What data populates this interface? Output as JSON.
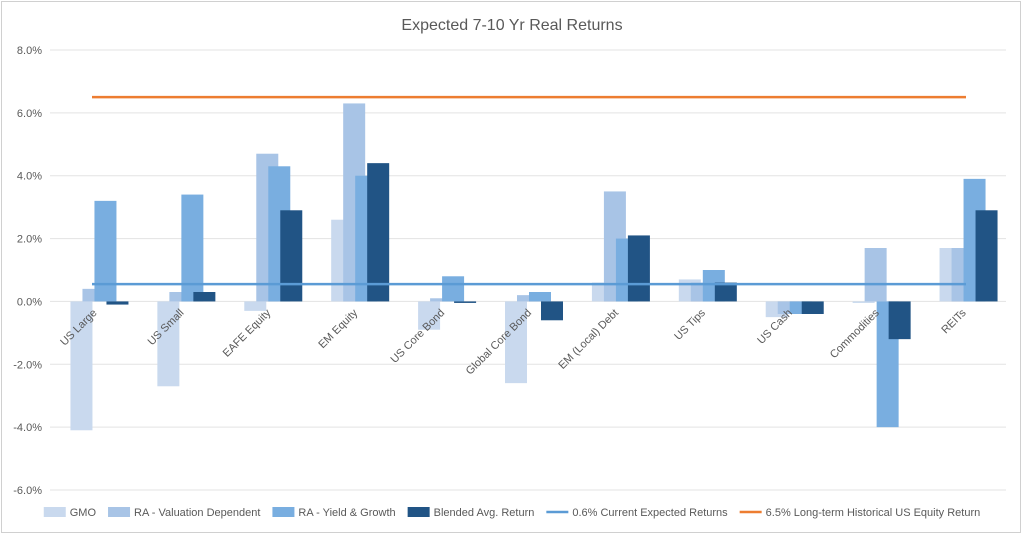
{
  "chart_data": {
    "type": "bar",
    "title": "Expected 7-10 Yr Real Returns",
    "xlabel": "",
    "ylabel": "",
    "ylim": [
      -6,
      8
    ],
    "y_ticks": [
      "8.0%",
      "6.0%",
      "4.0%",
      "2.0%",
      "0.0%",
      "-2.0%",
      "-4.0%",
      "-6.0%"
    ],
    "grid": true,
    "legend_position": "bottom",
    "categories": [
      "US Large",
      "US Small",
      "EAFE Equity",
      "EM Equity",
      "US Core Bond",
      "Global Core Bond",
      "EM (Local) Debt",
      "US Tips",
      "US Cash",
      "Commodities",
      "REITs"
    ],
    "series": [
      {
        "name": "GMO",
        "kind": "bar",
        "color": "#c9d9ee",
        "values": [
          -4.1,
          -2.7,
          -0.3,
          2.6,
          -0.9,
          -2.6,
          0.6,
          0.7,
          -0.5,
          0.0,
          1.7
        ]
      },
      {
        "name": "RA - Valuation Dependent",
        "kind": "bar",
        "color": "#a8c4e6",
        "values": [
          0.4,
          0.3,
          4.7,
          6.3,
          0.1,
          0.2,
          3.5,
          0.6,
          -0.4,
          1.7,
          1.7
        ]
      },
      {
        "name": "RA - Yield & Growth",
        "kind": "bar",
        "color": "#79aee0",
        "values": [
          3.2,
          3.4,
          4.3,
          4.0,
          0.8,
          0.3,
          2.0,
          1.0,
          -0.4,
          -4.0,
          3.9
        ]
      },
      {
        "name": "Blended Avg. Return",
        "kind": "bar",
        "color": "#215485",
        "values": [
          -0.1,
          0.3,
          2.9,
          4.4,
          0.0,
          -0.6,
          2.1,
          0.6,
          -0.4,
          -1.2,
          2.9
        ]
      },
      {
        "name": "0.6% Current Expected Returns",
        "kind": "line",
        "color": "#5b9bd5",
        "value": 0.55
      },
      {
        "name": "6.5% Long-term Historical US Equity Return",
        "kind": "line",
        "color": "#ed7d31",
        "value": 6.5
      }
    ]
  }
}
